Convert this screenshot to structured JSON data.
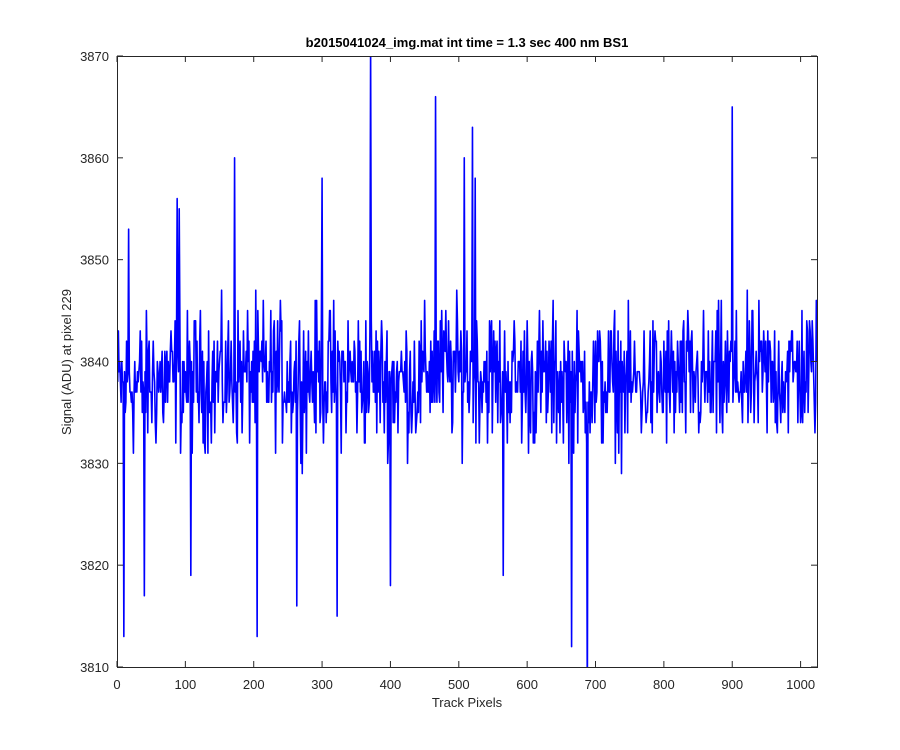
{
  "chart_data": {
    "type": "line",
    "title": "b2015041024_img.mat int time = 1.3 sec  400 nm BS1",
    "xlabel": "Track Pixels",
    "ylabel": "Signal (ADU) at pixel 229",
    "xlim": [
      0,
      1024
    ],
    "ylim": [
      3810,
      3870
    ],
    "xticks": [
      0,
      100,
      200,
      300,
      400,
      500,
      600,
      700,
      800,
      900,
      1000
    ],
    "yticks": [
      3810,
      3820,
      3830,
      3840,
      3850,
      3860,
      3870
    ],
    "grid": false,
    "legend": "none",
    "series": [
      {
        "color": "#0000ff",
        "x_start": 1,
        "x_step": 1,
        "baseline": 3837.5,
        "noise_amplitude": 8,
        "n_points": 1024,
        "spikes": [
          {
            "x": 10,
            "y": 3813
          },
          {
            "x": 17,
            "y": 3853
          },
          {
            "x": 40,
            "y": 3817
          },
          {
            "x": 88,
            "y": 3856
          },
          {
            "x": 91,
            "y": 3855
          },
          {
            "x": 108,
            "y": 3819
          },
          {
            "x": 172,
            "y": 3860
          },
          {
            "x": 205,
            "y": 3813
          },
          {
            "x": 263,
            "y": 3816
          },
          {
            "x": 300,
            "y": 3858
          },
          {
            "x": 322,
            "y": 3815
          },
          {
            "x": 371,
            "y": 3871
          },
          {
            "x": 400,
            "y": 3818
          },
          {
            "x": 466,
            "y": 3866
          },
          {
            "x": 508,
            "y": 3860
          },
          {
            "x": 520,
            "y": 3863
          },
          {
            "x": 524,
            "y": 3858
          },
          {
            "x": 565,
            "y": 3819
          },
          {
            "x": 665,
            "y": 3812
          },
          {
            "x": 688,
            "y": 3806
          },
          {
            "x": 900,
            "y": 3865
          }
        ]
      }
    ]
  }
}
